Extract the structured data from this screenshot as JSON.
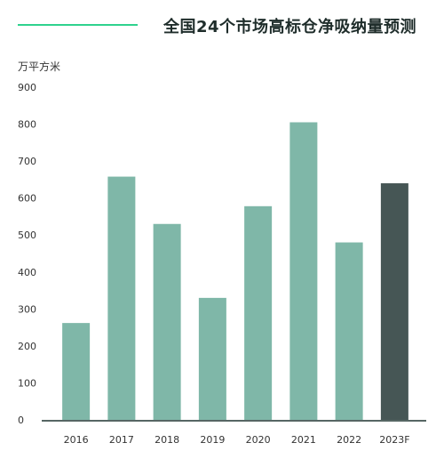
{
  "header": {
    "title": "全国24个市场高标仓净吸纳量预测"
  },
  "chart_data": {
    "type": "bar",
    "title": "全国24个市场高标仓净吸纳量预测",
    "ylabel": "万平方米",
    "xlabel": "",
    "categories": [
      "2016",
      "2017",
      "2018",
      "2019",
      "2020",
      "2021",
      "2022",
      "2023F"
    ],
    "values": [
      262,
      658,
      530,
      330,
      578,
      805,
      480,
      640
    ],
    "ylim": [
      0,
      900
    ],
    "yticks": [
      0,
      100,
      200,
      300,
      400,
      500,
      600,
      700,
      800,
      900
    ],
    "grid": false,
    "legend": "none",
    "colors": {
      "actual": "#7fb7a8",
      "forecast": "#465655",
      "axis": "#1f3331",
      "accent": "#2fd28e"
    },
    "forecast_index": 7
  }
}
